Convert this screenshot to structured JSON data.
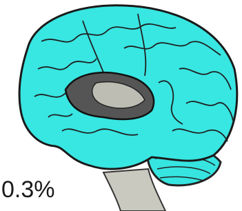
{
  "label": "0.3%"
}
